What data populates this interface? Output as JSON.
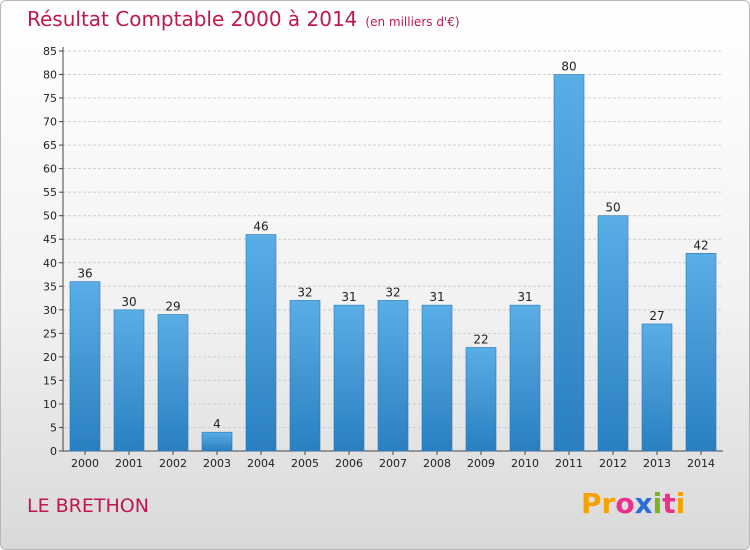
{
  "header": {
    "title": "Résultat Comptable 2000 à 2014",
    "subtitle": "(en milliers d'€)"
  },
  "footer": {
    "commune": "LE BRETHON",
    "logo_letters": [
      "P",
      "r",
      "o",
      "x",
      "i",
      "t",
      "i"
    ]
  },
  "colors": {
    "title": "#c0184a",
    "bar_top": "#5aaee6",
    "bar_bottom": "#2a7fc0",
    "logo": [
      "#f5a100",
      "#f5a100",
      "#e8328c",
      "#2b6fd6",
      "#7ab31e",
      "#e8328c",
      "#f5a100"
    ]
  },
  "chart_data": {
    "type": "bar",
    "categories": [
      "2000",
      "2001",
      "2002",
      "2003",
      "2004",
      "2005",
      "2006",
      "2007",
      "2008",
      "2009",
      "2010",
      "2011",
      "2012",
      "2013",
      "2014"
    ],
    "values": [
      36,
      30,
      29,
      4,
      46,
      32,
      31,
      32,
      31,
      22,
      31,
      80,
      50,
      27,
      42
    ],
    "ylim": [
      0,
      85
    ],
    "yticks": [
      0,
      5,
      10,
      15,
      20,
      25,
      30,
      35,
      40,
      45,
      50,
      55,
      60,
      65,
      70,
      75,
      80,
      85
    ],
    "grid": true,
    "data_labels": true
  }
}
